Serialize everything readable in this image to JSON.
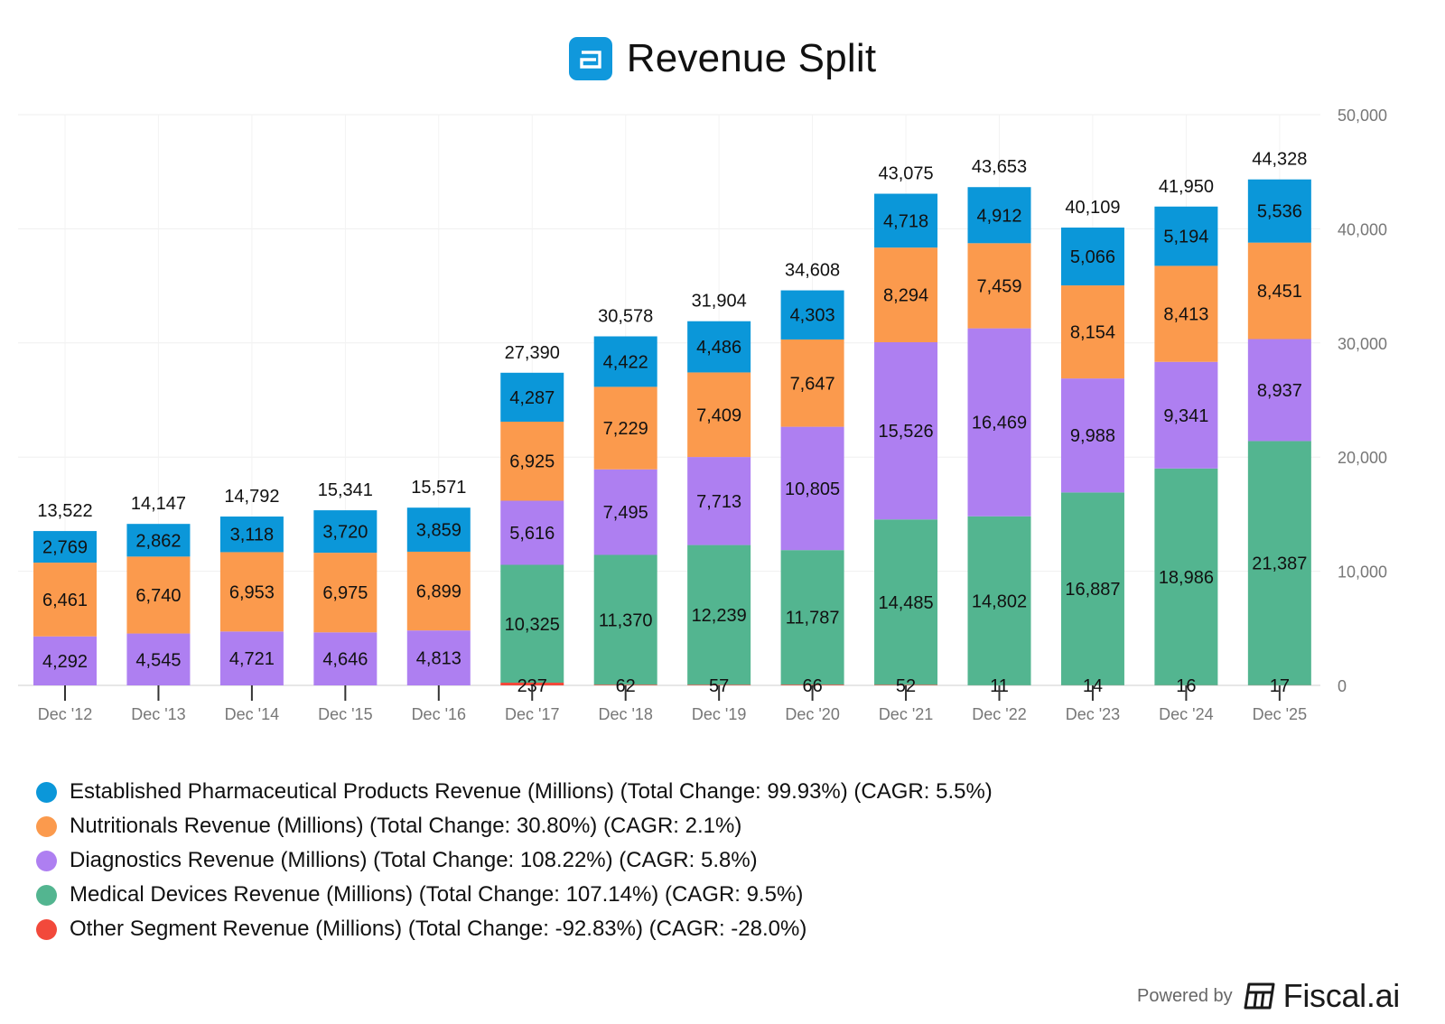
{
  "title": "Revenue Split",
  "branding": {
    "powered_by": "Powered by",
    "name": "Fiscal.ai"
  },
  "colors": {
    "established": "#0b97d9",
    "nutritionals": "#fb9a4d",
    "diagnostics": "#ae7ff1",
    "medical": "#53b590",
    "other": "#f2493b",
    "logo": "#1098dc"
  },
  "chart_data": {
    "type": "bar",
    "stacked": true,
    "categories": [
      "Dec '12",
      "Dec '13",
      "Dec '14",
      "Dec '15",
      "Dec '16",
      "Dec '17",
      "Dec '18",
      "Dec '19",
      "Dec '20",
      "Dec '21",
      "Dec '22",
      "Dec '23",
      "Dec '24",
      "Dec '25"
    ],
    "totals": [
      "13,522",
      "14,147",
      "14,792",
      "15,341",
      "15,571",
      "27,390",
      "30,578",
      "31,904",
      "34,608",
      "43,075",
      "43,653",
      "40,109",
      "41,950",
      "44,328"
    ],
    "ylim": [
      0,
      50000
    ],
    "y_ticks": [
      "0",
      "10,000",
      "20,000",
      "30,000",
      "40,000",
      "50,000"
    ],
    "y_axis_position": "right",
    "grid": true,
    "series": [
      {
        "key": "other",
        "name": "Other Segment Revenue (Millions)",
        "total_change": "-92.83%",
        "cagr": "-28.0%",
        "values": [
          null,
          null,
          null,
          null,
          null,
          237,
          62,
          57,
          66,
          52,
          11,
          14,
          16,
          17
        ]
      },
      {
        "key": "medical",
        "name": "Medical Devices Revenue (Millions)",
        "total_change": "107.14%",
        "cagr": "9.5%",
        "values": [
          null,
          null,
          null,
          null,
          null,
          10325,
          11370,
          12239,
          11787,
          14485,
          14802,
          16887,
          18986,
          21387
        ]
      },
      {
        "key": "diagnostics",
        "name": "Diagnostics Revenue (Millions)",
        "total_change": "108.22%",
        "cagr": "5.8%",
        "values": [
          4292,
          4545,
          4721,
          4646,
          4813,
          5616,
          7495,
          7713,
          10805,
          15526,
          16469,
          9988,
          9341,
          8937
        ]
      },
      {
        "key": "nutritionals",
        "name": "Nutritionals Revenue (Millions)",
        "total_change": "30.80%",
        "cagr": "2.1%",
        "values": [
          6461,
          6740,
          6953,
          6975,
          6899,
          6925,
          7229,
          7409,
          7647,
          8294,
          7459,
          8154,
          8413,
          8451
        ]
      },
      {
        "key": "established",
        "name": "Established Pharmaceutical Products Revenue (Millions)",
        "total_change": "99.93%",
        "cagr": "5.5%",
        "values": [
          2769,
          2862,
          3118,
          3720,
          3859,
          4287,
          4422,
          4486,
          4303,
          4718,
          4912,
          5066,
          5194,
          5536
        ]
      }
    ]
  },
  "legend": [
    {
      "key": "established",
      "label": "Established Pharmaceutical Products Revenue (Millions) (Total Change: 99.93%) (CAGR: 5.5%)"
    },
    {
      "key": "nutritionals",
      "label": "Nutritionals Revenue (Millions) (Total Change: 30.80%) (CAGR: 2.1%)"
    },
    {
      "key": "diagnostics",
      "label": "Diagnostics Revenue (Millions) (Total Change: 108.22%) (CAGR: 5.8%)"
    },
    {
      "key": "medical",
      "label": "Medical Devices Revenue (Millions) (Total Change: 107.14%) (CAGR: 9.5%)"
    },
    {
      "key": "other",
      "label": "Other Segment Revenue (Millions) (Total Change: -92.83%) (CAGR: -28.0%)"
    }
  ]
}
